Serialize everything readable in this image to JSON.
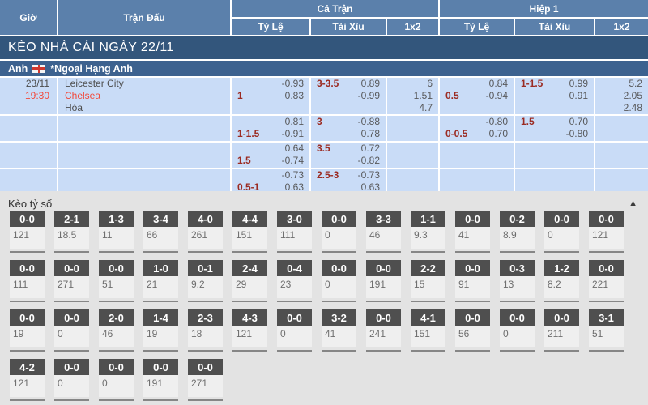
{
  "table_header": {
    "time": "Giờ",
    "match": "Trận Đấu",
    "full_match": "Cả Trận",
    "first_half": "Hiệp 1",
    "odds": "Tỷ Lệ",
    "over_under": "Tài Xỉu",
    "one_x_two": "1x2"
  },
  "title_bar": "KÈO NHÀ CÁI NGÀY 22/11",
  "league_bar": {
    "country": "Anh",
    "league": "*Ngoại Hạng Anh"
  },
  "match": {
    "date": "23/11",
    "time": "19:30",
    "home": "Leicester City",
    "away": "Chelsea",
    "draw": "Hòa"
  },
  "odds_rows": [
    {
      "ft_hdp": {
        "l1l": "",
        "l1r": "-0.93",
        "l2l": "1",
        "l2r": "0.83"
      },
      "ft_ou": {
        "l1l": "3-3.5",
        "l1r": "0.89",
        "l2l": "",
        "l2r": "-0.99"
      },
      "ft_1x2": [
        "6",
        "1.51",
        "4.7"
      ],
      "h1_hdp": {
        "l1l": "",
        "l1r": "0.84",
        "l2l": "0.5",
        "l2r": "-0.94"
      },
      "h1_ou": {
        "l1l": "1-1.5",
        "l1r": "0.99",
        "l2l": "",
        "l2r": "0.91"
      },
      "h1_1x2": [
        "5.2",
        "2.05",
        "2.48"
      ]
    },
    {
      "ft_hdp": {
        "l1l": "",
        "l1r": "0.81",
        "l2l": "1-1.5",
        "l2r": "-0.91"
      },
      "ft_ou": {
        "l1l": "3",
        "l1r": "-0.88",
        "l2l": "",
        "l2r": "0.78"
      },
      "ft_1x2": [
        "",
        "",
        ""
      ],
      "h1_hdp": {
        "l1l": "",
        "l1r": "-0.80",
        "l2l": "0-0.5",
        "l2r": "0.70"
      },
      "h1_ou": {
        "l1l": "1.5",
        "l1r": "0.70",
        "l2l": "",
        "l2r": "-0.80"
      },
      "h1_1x2": [
        "",
        "",
        ""
      ]
    },
    {
      "ft_hdp": {
        "l1l": "",
        "l1r": "0.64",
        "l2l": "1.5",
        "l2r": "-0.74"
      },
      "ft_ou": {
        "l1l": "3.5",
        "l1r": "0.72",
        "l2l": "",
        "l2r": "-0.82"
      },
      "ft_1x2": [
        "",
        "",
        ""
      ],
      "h1_hdp": {
        "l1l": "",
        "l1r": "",
        "l2l": "",
        "l2r": ""
      },
      "h1_ou": {
        "l1l": "",
        "l1r": "",
        "l2l": "",
        "l2r": ""
      },
      "h1_1x2": [
        "",
        "",
        ""
      ]
    },
    {
      "ft_hdp": {
        "l1l": "",
        "l1r": "-0.73",
        "l2l": "0.5-1",
        "l2r": "0.63"
      },
      "ft_ou": {
        "l1l": "2.5-3",
        "l1r": "-0.73",
        "l2l": "",
        "l2r": "0.63"
      },
      "ft_1x2": [
        "",
        "",
        ""
      ],
      "h1_hdp": {
        "l1l": "",
        "l1r": "",
        "l2l": "",
        "l2r": ""
      },
      "h1_ou": {
        "l1l": "",
        "l1r": "",
        "l2l": "",
        "l2r": ""
      },
      "h1_1x2": [
        "",
        "",
        ""
      ]
    }
  ],
  "score_section": {
    "title": "Kèo tỷ số",
    "collapse_icon": "▲",
    "rows": [
      [
        {
          "score": "0-0",
          "odds": "121"
        },
        {
          "score": "2-1",
          "odds": "18.5"
        },
        {
          "score": "1-3",
          "odds": "11"
        },
        {
          "score": "3-4",
          "odds": "66"
        },
        {
          "score": "4-0",
          "odds": "261"
        },
        {
          "score": "4-4",
          "odds": "151"
        },
        {
          "score": "3-0",
          "odds": "111"
        },
        {
          "score": "0-0",
          "odds": "0"
        },
        {
          "score": "3-3",
          "odds": "46"
        },
        {
          "score": "1-1",
          "odds": "9.3"
        },
        {
          "score": "0-0",
          "odds": "41"
        },
        {
          "score": "0-2",
          "odds": "8.9"
        },
        {
          "score": "0-0",
          "odds": "0"
        },
        {
          "score": "0-0",
          "odds": "121"
        }
      ],
      [
        {
          "score": "0-0",
          "odds": "111"
        },
        {
          "score": "0-0",
          "odds": "271"
        },
        {
          "score": "0-0",
          "odds": "51"
        },
        {
          "score": "1-0",
          "odds": "21"
        },
        {
          "score": "0-1",
          "odds": "9.2"
        },
        {
          "score": "2-4",
          "odds": "29"
        },
        {
          "score": "0-4",
          "odds": "23"
        },
        {
          "score": "0-0",
          "odds": "0"
        },
        {
          "score": "0-0",
          "odds": "191"
        },
        {
          "score": "2-2",
          "odds": "15"
        },
        {
          "score": "0-0",
          "odds": "91"
        },
        {
          "score": "0-3",
          "odds": "13"
        },
        {
          "score": "1-2",
          "odds": "8.2"
        },
        {
          "score": "0-0",
          "odds": "221"
        }
      ],
      [
        {
          "score": "0-0",
          "odds": "19"
        },
        {
          "score": "0-0",
          "odds": "0"
        },
        {
          "score": "2-0",
          "odds": "46"
        },
        {
          "score": "1-4",
          "odds": "19"
        },
        {
          "score": "2-3",
          "odds": "18"
        },
        {
          "score": "4-3",
          "odds": "121"
        },
        {
          "score": "0-0",
          "odds": "0"
        },
        {
          "score": "3-2",
          "odds": "41"
        },
        {
          "score": "0-0",
          "odds": "241"
        },
        {
          "score": "4-1",
          "odds": "151"
        },
        {
          "score": "0-0",
          "odds": "56"
        },
        {
          "score": "0-0",
          "odds": "0"
        },
        {
          "score": "0-0",
          "odds": "211"
        },
        {
          "score": "3-1",
          "odds": "51"
        }
      ],
      [
        {
          "score": "4-2",
          "odds": "121"
        },
        {
          "score": "0-0",
          "odds": "0"
        },
        {
          "score": "0-0",
          "odds": "0"
        },
        {
          "score": "0-0",
          "odds": "191"
        },
        {
          "score": "0-0",
          "odds": "271"
        }
      ]
    ]
  },
  "colors": {
    "header_blue": "#5b80ab",
    "title_bar_blue": "#33567c",
    "league_bar_blue": "#3d628f",
    "row_bg": "#c9dcf7",
    "handicap_red": "#9b2b22",
    "highlight_red": "#f2493b",
    "score_box_dark": "#4f4f4f",
    "section_bg": "#e3e3e3"
  }
}
